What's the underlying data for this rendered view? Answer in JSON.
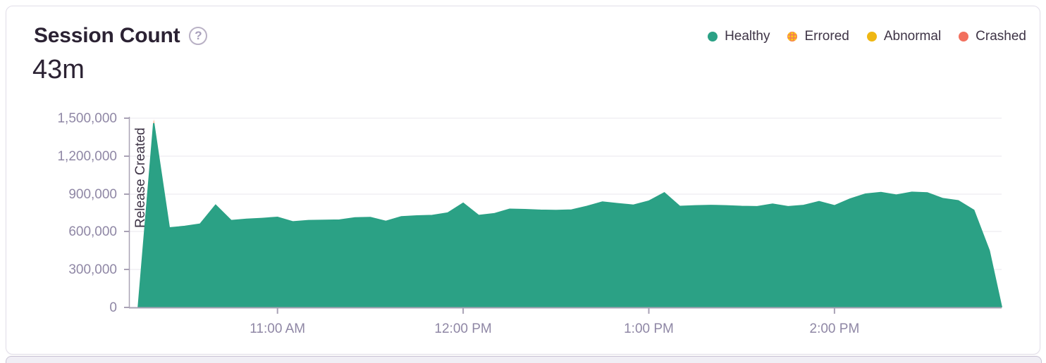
{
  "card": {
    "title": "Session Count",
    "help_icon": "?",
    "total": "43m"
  },
  "legend": {
    "items": [
      {
        "label": "Healthy",
        "color": "#2ba185",
        "pattern": "solid"
      },
      {
        "label": "Errored",
        "color": "#f4834f",
        "pattern": "dotted",
        "pattern_dot_color": "#ffd00e"
      },
      {
        "label": "Abnormal",
        "color": "#efb713",
        "pattern": "solid"
      },
      {
        "label": "Crashed",
        "color": "#f2705e",
        "pattern": "solid"
      }
    ]
  },
  "chart_data": {
    "type": "area",
    "title": "Session Count",
    "total_sessions_label": "43m",
    "stacked": true,
    "grid": true,
    "legend_position": "top-right",
    "release_annotation": "Release Created",
    "x_axis": {
      "ticks": [
        "11:00 AM",
        "12:00 PM",
        "1:00 PM",
        "2:00 PM"
      ],
      "approx_range": [
        "10:15 AM",
        "2:55 PM"
      ],
      "t_unit": "minutes after 10:00 AM"
    },
    "y_axis": {
      "ticks": [
        "1,500,000",
        "1,200,000",
        "900,000",
        "600,000",
        "300,000",
        "0"
      ],
      "min": 0,
      "max": 1500000
    },
    "series": [
      {
        "name": "Healthy",
        "color": "#2ba185",
        "t_minutes": [
          15,
          20,
          25,
          30,
          35,
          40,
          45,
          50,
          55,
          60,
          65,
          70,
          75,
          80,
          85,
          90,
          95,
          100,
          105,
          110,
          115,
          120,
          125,
          130,
          135,
          140,
          145,
          150,
          155,
          160,
          165,
          170,
          175,
          180,
          185,
          190,
          195,
          200,
          205,
          210,
          215,
          220,
          225,
          230,
          235,
          240,
          245,
          250,
          255,
          260,
          265,
          270,
          275,
          280,
          285,
          290,
          294
        ],
        "values": [
          0,
          1460000,
          630000,
          642000,
          660000,
          810000,
          688000,
          698000,
          705000,
          714000,
          678000,
          688000,
          690000,
          692000,
          710000,
          712000,
          682000,
          718000,
          725000,
          728000,
          748000,
          825000,
          728000,
          742000,
          778000,
          775000,
          770000,
          768000,
          772000,
          800000,
          835000,
          822000,
          810000,
          842000,
          908000,
          800000,
          805000,
          808000,
          805000,
          800000,
          798000,
          818000,
          798000,
          808000,
          838000,
          806000,
          858000,
          898000,
          910000,
          890000,
          912000,
          908000,
          862000,
          845000,
          770000,
          450000,
          0
        ]
      },
      {
        "name": "Errored",
        "color": "#f4834f",
        "t_minutes": [
          15,
          20,
          25
        ],
        "values": [
          0,
          30000,
          0
        ]
      },
      {
        "name": "Abnormal",
        "color": "#efb713",
        "t_minutes": [],
        "values": []
      },
      {
        "name": "Crashed",
        "color": "#f2705e",
        "t_minutes": [],
        "values": []
      }
    ]
  }
}
